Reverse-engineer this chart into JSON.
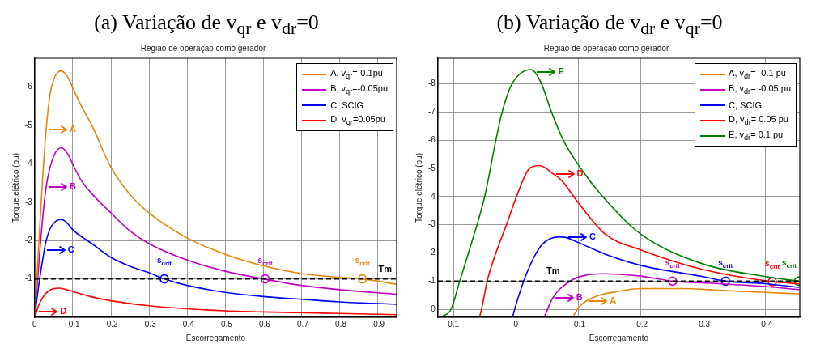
{
  "chart_data": [
    {
      "type": "line",
      "title": "(a) Variação de v$_{qr}$ e v$_{dr}$=0",
      "subtitle": "Região de operação como gerador",
      "xlabel": "Escorregamento",
      "ylabel": "Torque elétrico (pu)",
      "xlim": [
        0,
        -0.95
      ],
      "xticks": [
        0,
        -0.1,
        -0.2,
        -0.3,
        -0.4,
        -0.5,
        -0.6,
        -0.7,
        -0.8,
        -0.9
      ],
      "ylim": [
        0,
        -6.75
      ],
      "yticks": [
        -1,
        -2,
        -3,
        -4,
        -5,
        -6
      ],
      "grid": true,
      "legend": "top right",
      "series": [
        {
          "name": "A, v$_{qr}$=-0.1pu",
          "color": "#e8860a",
          "x": [
            0,
            -0.01,
            -0.02,
            -0.03,
            -0.04,
            -0.05,
            -0.06,
            -0.07,
            -0.08,
            -0.09,
            -0.1,
            -0.12,
            -0.15,
            -0.2,
            -0.25,
            -0.3,
            -0.4,
            -0.5,
            -0.6,
            -0.7,
            -0.8,
            -0.86,
            -0.95
          ],
          "values": [
            0,
            -1.8,
            -3.5,
            -4.9,
            -5.8,
            -6.2,
            -6.38,
            -6.42,
            -6.35,
            -6.2,
            -5.98,
            -5.55,
            -5.0,
            -3.91,
            -3.2,
            -2.72,
            -2.07,
            -1.64,
            -1.34,
            -1.14,
            -1.04,
            -1.0,
            -0.86
          ]
        },
        {
          "name": "B, v$_{qr}$=-0.05pu",
          "color": "#c000c0",
          "x": [
            0,
            -0.01,
            -0.02,
            -0.03,
            -0.04,
            -0.05,
            -0.06,
            -0.07,
            -0.08,
            -0.09,
            -0.1,
            -0.12,
            -0.15,
            -0.2,
            -0.25,
            -0.3,
            -0.4,
            -0.5,
            -0.6,
            -0.7,
            -0.8,
            -0.95
          ],
          "values": [
            0,
            -1.3,
            -2.5,
            -3.4,
            -3.9,
            -4.2,
            -4.37,
            -4.42,
            -4.35,
            -4.2,
            -3.99,
            -3.6,
            -3.22,
            -2.72,
            -2.25,
            -1.92,
            -1.49,
            -1.2,
            -1.0,
            -0.83,
            -0.72,
            -0.6
          ]
        },
        {
          "name": "C, SCIG",
          "color": "#0000ff",
          "x": [
            0,
            -0.01,
            -0.025,
            -0.03,
            -0.04,
            -0.05,
            -0.06,
            -0.07,
            -0.08,
            -0.09,
            -0.1,
            -0.15,
            -0.2,
            -0.25,
            -0.3,
            -0.34,
            -0.4,
            -0.5,
            -0.6,
            -0.7,
            -0.8,
            -0.95
          ],
          "values": [
            0,
            -0.8,
            -1.75,
            -2.0,
            -2.3,
            -2.45,
            -2.53,
            -2.55,
            -2.5,
            -2.4,
            -2.28,
            -1.92,
            -1.56,
            -1.33,
            -1.16,
            -1.0,
            -0.83,
            -0.65,
            -0.54,
            -0.47,
            -0.4,
            -0.34
          ]
        },
        {
          "name": "D, v$_{qr}$=0.05pu",
          "color": "#ff0000",
          "x": [
            0,
            -0.005,
            -0.01,
            -0.02,
            -0.03,
            -0.04,
            -0.05,
            -0.065,
            -0.08,
            -0.1,
            -0.15,
            -0.2,
            -0.3,
            -0.4,
            -0.5,
            -0.6,
            -0.8,
            -0.95
          ],
          "values": [
            0,
            -0.15,
            -0.3,
            -0.5,
            -0.63,
            -0.71,
            -0.75,
            -0.76,
            -0.73,
            -0.67,
            -0.53,
            -0.43,
            -0.3,
            -0.22,
            -0.17,
            -0.14,
            -0.1,
            -0.07
          ]
        },
        {
          "type": "scatter",
          "color": "#0000ff",
          "marker": "circle",
          "x": [
            -0.34
          ],
          "values": [
            -1
          ]
        },
        {
          "type": "scatter",
          "color": "#c000c0",
          "marker": "circle",
          "x": [
            -0.605
          ],
          "values": [
            -1
          ]
        },
        {
          "type": "scatter",
          "color": "#e8860a",
          "marker": "circle",
          "x": [
            -0.86
          ],
          "values": [
            -1
          ]
        }
      ],
      "ref_lines": [
        {
          "axis": "y",
          "value": -1,
          "color": "#000000",
          "line_style": "dashed",
          "label": "Tm"
        }
      ],
      "annotations": [
        {
          "text": "A",
          "x": -0.03,
          "y": -4.9
        },
        {
          "text": "B",
          "x": -0.03,
          "y": -3.4
        },
        {
          "text": "C",
          "x": -0.025,
          "y": -1.75
        },
        {
          "text": "D",
          "x": -0.005,
          "y": -0.15
        },
        {
          "text": "s$_{crit}$",
          "x": -0.34,
          "y": -1
        },
        {
          "text": "s$_{crit}$",
          "x": -0.605,
          "y": -1
        },
        {
          "text": "s$_{crit}$",
          "x": -0.86,
          "y": -1
        }
      ]
    },
    {
      "type": "line",
      "title": "(b) Variação de v$_{dr}$ e v$_{qr}$=0",
      "subtitle": "Região de operação como gerador",
      "xlabel": "Escorregamento",
      "ylabel": "Torque elétrico (pu)",
      "xlim": [
        0.125,
        -0.455
      ],
      "xticks": [
        0.1,
        0,
        -0.1,
        -0.2,
        -0.3,
        -0.4
      ],
      "ylim": [
        0.28,
        -8.9
      ],
      "yticks": [
        0,
        -1,
        -2,
        -3,
        -4,
        -5,
        -6,
        -7,
        -8
      ],
      "grid": true,
      "legend": "top right",
      "series": [
        {
          "name": "A, v$_{dr}$= -0.1 pu",
          "color": "#e8860a",
          "x": [
            -0.092,
            -0.1,
            -0.113,
            -0.134,
            -0.167,
            -0.2,
            -0.265,
            -0.33,
            -0.4,
            -0.454
          ],
          "values": [
            0.25,
            -0.05,
            -0.3,
            -0.5,
            -0.65,
            -0.74,
            -0.74,
            -0.67,
            -0.6,
            -0.55
          ]
        },
        {
          "name": "B, v$_{dr}$= -0.05 pu",
          "color": "#c000c0",
          "x": [
            -0.046,
            -0.059,
            -0.087,
            -0.106,
            -0.139,
            -0.2,
            -0.251,
            -0.3,
            -0.4,
            -0.454
          ],
          "values": [
            0.25,
            -0.4,
            -1.0,
            -1.18,
            -1.26,
            -1.18,
            -1.0,
            -0.94,
            -0.81,
            -0.7
          ]
        },
        {
          "name": "C, SCIG",
          "color": "#0000ff",
          "x": [
            0.005,
            0,
            -0.017,
            -0.041,
            -0.069,
            -0.08,
            -0.1,
            -0.143,
            -0.2,
            -0.3,
            -0.336,
            -0.4,
            -0.454
          ],
          "values": [
            0.25,
            -0.15,
            -1.26,
            -2.27,
            -2.57,
            -2.55,
            -2.37,
            -1.96,
            -1.56,
            -1.16,
            -1.0,
            -0.91,
            -0.78
          ]
        },
        {
          "name": "D, v$_{dr}$= 0.05 pu",
          "color": "#ff0000",
          "x": [
            0.058,
            0.055,
            0.046,
            0.032,
            0.015,
            -0.001,
            -0.022,
            -0.038,
            -0.06,
            -0.073,
            -0.1,
            -0.143,
            -0.2,
            -0.3,
            -0.411,
            -0.454
          ],
          "values": [
            0.25,
            0,
            -1,
            -2,
            -3,
            -4,
            -5,
            -5.1,
            -4.8,
            -4.58,
            -3.78,
            -2.67,
            -2.11,
            -1.41,
            -0.98,
            -0.91
          ]
        },
        {
          "name": "E, v$_{dr}$= 0.1 pu",
          "color": "#008000",
          "x": [
            0.118,
            0.104,
            0.09,
            0.076,
            0.05,
            0.032,
            0.022,
            0.006,
            -0.024,
            -0.03,
            -0.041,
            -0.057,
            -0.076,
            -0.104,
            -0.139,
            -0.2,
            -0.3,
            -0.4,
            -0.453
          ],
          "values": [
            0.25,
            0,
            -1,
            -2,
            -4,
            -6,
            -7,
            -8,
            -8.5,
            -8.42,
            -8,
            -7,
            -6,
            -5,
            -4,
            -2.67,
            -1.61,
            -1.16,
            -1.0
          ]
        },
        {
          "type": "scatter",
          "color": "#c000c0",
          "marker": "circle",
          "x": [
            -0.251
          ],
          "values": [
            -1.0
          ]
        },
        {
          "type": "scatter",
          "color": "#0000ff",
          "marker": "circle",
          "x": [
            -0.336
          ],
          "values": [
            -1.0
          ]
        },
        {
          "type": "scatter",
          "color": "#ff0000",
          "marker": "circle",
          "x": [
            -0.411
          ],
          "values": [
            -0.98
          ]
        },
        {
          "type": "scatter",
          "color": "#008000",
          "marker": "circle",
          "x": [
            -0.453
          ],
          "values": [
            -1.0
          ]
        }
      ],
      "ref_lines": [
        {
          "axis": "y",
          "value": -1,
          "color": "#000000",
          "line_style": "dashed",
          "label": "Tm"
        }
      ],
      "annotations": [
        {
          "text": "E",
          "x": -0.03,
          "y": -8.42
        },
        {
          "text": "D",
          "x": -0.06,
          "y": -4.8
        },
        {
          "text": "C",
          "x": -0.08,
          "y": -2.55
        },
        {
          "text": "B",
          "x": -0.059,
          "y": -0.4
        },
        {
          "text": "A",
          "x": -0.113,
          "y": -0.3
        },
        {
          "text": "s$_{crit}$",
          "x": -0.251,
          "y": -1.0
        },
        {
          "text": "s$_{crit}$",
          "x": -0.336,
          "y": -1.0
        },
        {
          "text": "s$_{crit}$",
          "x": -0.411,
          "y": -0.98
        },
        {
          "text": "s$_{crit}$",
          "x": -0.453,
          "y": -1.0
        }
      ]
    }
  ]
}
